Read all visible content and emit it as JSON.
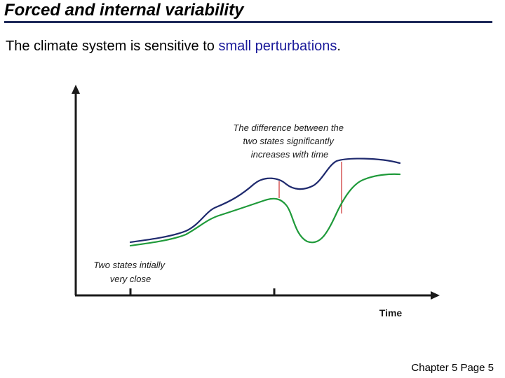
{
  "slide": {
    "title": "Forced and internal variability",
    "subtitle_main": "The climate system is sensitive to ",
    "subtitle_highlight": "small perturbations",
    "subtitle_end": ".",
    "footer": "Chapter 5 Page 5"
  },
  "diagram": {
    "top_annotation": [
      "The difference between the",
      "two states significantly",
      "increases with time"
    ],
    "left_annotation": [
      "Two states intially",
      "very close"
    ],
    "x_axis_label": "Time",
    "colors": {
      "state_a": "#1f2a6e",
      "state_b": "#1f9a3a",
      "difference_marker": "#cc2b2b",
      "axis": "#1a1a1a",
      "highlight_text": "#1a1a9a"
    }
  }
}
